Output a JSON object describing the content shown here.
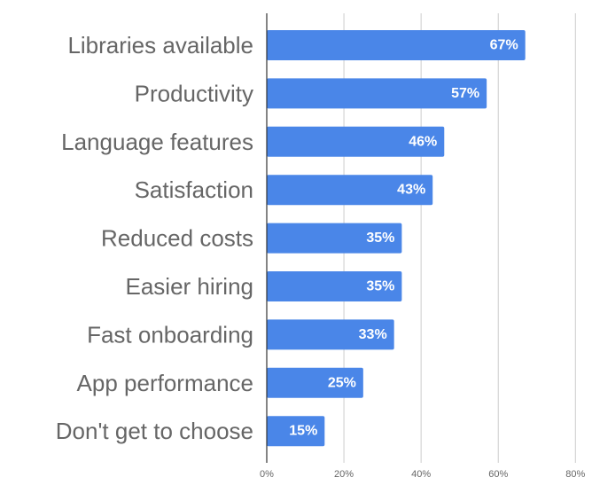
{
  "chart_data": {
    "type": "bar",
    "orientation": "horizontal",
    "categories": [
      "Libraries available",
      "Productivity",
      "Language features",
      "Satisfaction",
      "Reduced costs",
      "Easier hiring",
      "Fast onboarding",
      "App performance",
      "Don't get to choose"
    ],
    "values": [
      67,
      57,
      46,
      43,
      35,
      35,
      33,
      25,
      15
    ],
    "data_labels": [
      "67%",
      "57%",
      "46%",
      "43%",
      "35%",
      "35%",
      "33%",
      "25%",
      "15%"
    ],
    "title": "",
    "xlabel": "",
    "ylabel": "",
    "xlim": [
      0,
      80
    ],
    "x_ticks": [
      "0%",
      "20%",
      "40%",
      "60%",
      "80%"
    ],
    "grid": true,
    "bar_color": "#4a86e8"
  }
}
